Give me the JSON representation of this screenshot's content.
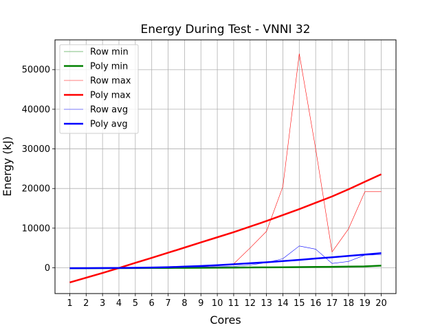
{
  "chart_data": {
    "type": "line",
    "title": "Energy During Test - VNNI 32",
    "xlabel": "Cores",
    "ylabel": "Energy (kJ)",
    "xlim": [
      0.1,
      20.9
    ],
    "ylim": [
      -6500,
      57500
    ],
    "x": [
      1,
      2,
      3,
      4,
      5,
      6,
      7,
      8,
      9,
      10,
      11,
      12,
      13,
      14,
      15,
      16,
      17,
      18,
      19,
      20
    ],
    "yticks": [
      0,
      10000,
      20000,
      30000,
      40000,
      50000
    ],
    "grid": true,
    "legend_position": "top-left",
    "series": [
      {
        "name": "Row min",
        "color": "#008000",
        "width": 0.6,
        "values": [
          20,
          30,
          40,
          50,
          60,
          70,
          80,
          90,
          100,
          110,
          120,
          140,
          160,
          180,
          200,
          230,
          260,
          300,
          500,
          600
        ]
      },
      {
        "name": "Poly min",
        "color": "#008000",
        "width": 2.5,
        "values": [
          -100,
          -95,
          -85,
          -75,
          -60,
          -45,
          -30,
          -10,
          10,
          30,
          55,
          80,
          110,
          140,
          175,
          210,
          250,
          300,
          350,
          550
        ]
      },
      {
        "name": "Row max",
        "color": "#ff0000",
        "width": 0.6,
        "values": [
          0,
          0,
          0,
          50,
          100,
          150,
          200,
          250,
          300,
          500,
          1000,
          5000,
          9200,
          20500,
          54000,
          30000,
          4000,
          9800,
          19200,
          19200
        ]
      },
      {
        "name": "Poly max",
        "color": "#ff0000",
        "width": 2.5,
        "values": [
          -3700,
          -2500,
          -1300,
          -50,
          1250,
          2500,
          3800,
          5100,
          6400,
          7700,
          9000,
          10400,
          11800,
          13300,
          14800,
          16400,
          18000,
          19800,
          21700,
          23600
        ]
      },
      {
        "name": "Row avg",
        "color": "#0000ff",
        "width": 0.6,
        "values": [
          0,
          0,
          10,
          20,
          40,
          60,
          90,
          130,
          180,
          250,
          350,
          700,
          1300,
          2300,
          5500,
          4700,
          1100,
          1600,
          3200,
          3300
        ]
      },
      {
        "name": "Poly avg",
        "color": "#0000ff",
        "width": 2.5,
        "values": [
          -100,
          -80,
          -60,
          -30,
          0,
          70,
          150,
          300,
          450,
          650,
          900,
          1150,
          1400,
          1700,
          2000,
          2350,
          2650,
          3000,
          3350,
          3700
        ]
      }
    ]
  }
}
